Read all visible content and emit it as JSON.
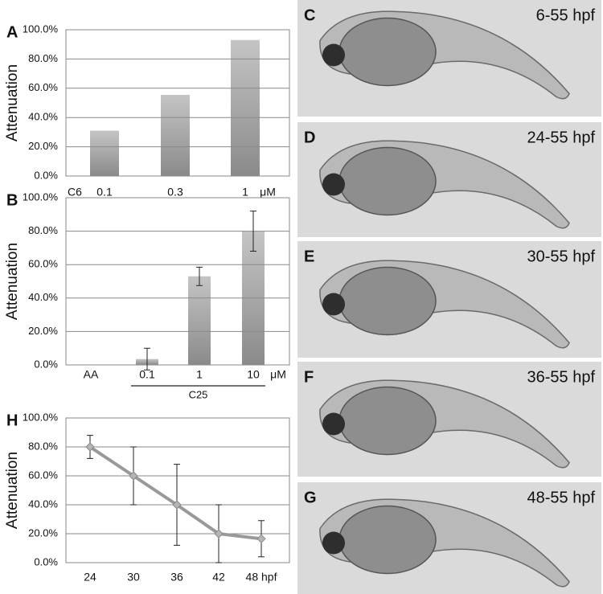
{
  "chart_data": [
    {
      "type": "bar",
      "panel": "A",
      "y_label": "Attenuation",
      "categories": [
        "0.1",
        "0.3",
        "1"
      ],
      "values": [
        31,
        55.5,
        93
      ],
      "x_prefix": "C6",
      "x_unit": "μM",
      "color": "#8a8a8a",
      "ylim": [
        0,
        100
      ],
      "yticks": [
        {
          "value": 0,
          "label": "0.0%"
        },
        {
          "value": 20,
          "label": "20.0%"
        },
        {
          "value": 40,
          "label": "40.0%"
        },
        {
          "value": 60,
          "label": "60.0%"
        },
        {
          "value": 80,
          "label": "80.0%"
        },
        {
          "value": 100,
          "label": "100.0%"
        }
      ],
      "grid": true
    },
    {
      "type": "bar",
      "panel": "B",
      "y_label": "Attenuation",
      "categories": [
        "AA",
        "0.1",
        "1",
        "10"
      ],
      "values": [
        0,
        3.5,
        53,
        80
      ],
      "errors": [
        null,
        6.5,
        5.5,
        12
      ],
      "x_unit": "μM",
      "group_label": "C25",
      "color": "#8a8a8a",
      "ylim": [
        0,
        100
      ],
      "yticks": [
        {
          "value": 0,
          "label": "0.0%"
        },
        {
          "value": 20,
          "label": "20.0%"
        },
        {
          "value": 40,
          "label": "40.0%"
        },
        {
          "value": 60,
          "label": "60.0%"
        },
        {
          "value": 80,
          "label": "80.0%"
        },
        {
          "value": 100,
          "label": "100.0%"
        }
      ],
      "grid": true
    },
    {
      "type": "line",
      "panel": "H",
      "y_label": "Attenuation",
      "categories": [
        "24",
        "30",
        "36",
        "42",
        "48 hpf"
      ],
      "values": [
        80,
        60,
        40,
        20,
        16.5
      ],
      "errors": [
        8,
        20,
        28,
        20,
        12.5
      ],
      "color": "#999999",
      "ylim": [
        0,
        100
      ],
      "yticks": [
        {
          "value": 0,
          "label": "0.0%"
        },
        {
          "value": 20,
          "label": "20.0%"
        },
        {
          "value": 40,
          "label": "40.0%"
        },
        {
          "value": 60,
          "label": "60.0%"
        },
        {
          "value": 80,
          "label": "80.0%"
        },
        {
          "value": 100,
          "label": "100.0%"
        }
      ],
      "grid": true
    }
  ],
  "panels": [
    {
      "label": "C",
      "caption": "6-55 hpf"
    },
    {
      "label": "D",
      "caption": "24-55 hpf"
    },
    {
      "label": "E",
      "caption": "30-55 hpf"
    },
    {
      "label": "F",
      "caption": "36-55 hpf"
    },
    {
      "label": "G",
      "caption": "48-55 hpf"
    }
  ]
}
